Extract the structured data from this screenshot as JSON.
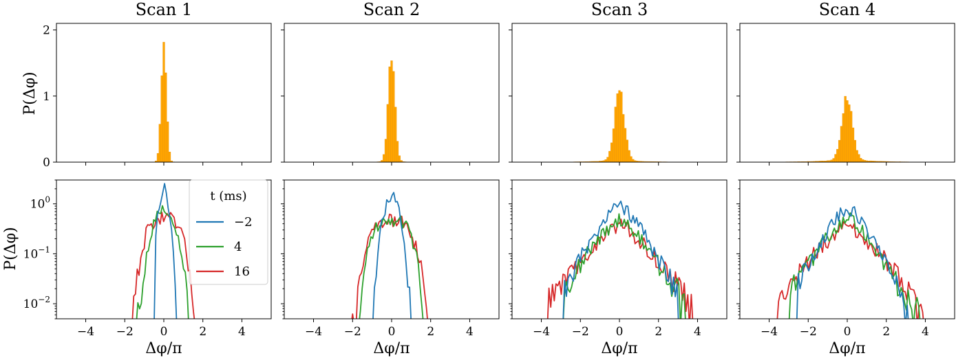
{
  "column_titles": [
    "Scan 1",
    "Scan 2",
    "Scan 3",
    "Scan 4"
  ],
  "labels": {
    "y_top": "P(Δφ)",
    "y_bottom": "P(Δφ)",
    "x": "Δφ/π"
  },
  "legend": {
    "title": "t (ms)",
    "entries": [
      "−2",
      "4",
      "16"
    ]
  },
  "colors": {
    "hist": "#ffa500",
    "hist_edge": "#e8920a",
    "series": [
      "#1f77b4",
      "#2ca02c",
      "#d62728"
    ]
  },
  "chart_data": [
    {
      "type": "histogram-grid",
      "row": "top",
      "xlim": [
        -5.5,
        5.5
      ],
      "ylim": [
        0,
        2.1
      ],
      "xticks": [
        -4,
        -2,
        0,
        2,
        4
      ],
      "yticks": [
        0,
        1,
        2
      ],
      "ytick_labels": [
        "0",
        "1",
        "2"
      ],
      "scale": "linear",
      "panels": [
        {
          "scan": "Scan 1",
          "peak": 1.97,
          "core_width": 0.13,
          "tail_amp": 0.012,
          "tail_width": 0.35,
          "xmin": -0.6,
          "xmax": 0.6
        },
        {
          "scan": "Scan 2",
          "peak": 1.56,
          "core_width": 0.17,
          "tail_amp": 0.015,
          "tail_width": 0.6,
          "xmin": -1.1,
          "xmax": 2.3
        },
        {
          "scan": "Scan 3",
          "peak": 1.04,
          "core_width": 0.25,
          "tail_amp": 0.035,
          "tail_width": 1.1,
          "xmin": -3.2,
          "xmax": 3.5
        },
        {
          "scan": "Scan 4",
          "peak": 0.92,
          "core_width": 0.27,
          "tail_amp": 0.045,
          "tail_width": 1.3,
          "xmin": -3.6,
          "xmax": 3.6
        }
      ]
    },
    {
      "type": "line",
      "row": "bottom",
      "scale": "log",
      "xlim": [
        -5.5,
        5.5
      ],
      "ylim": [
        0.005,
        3.0
      ],
      "xticks": [
        -4,
        -2,
        0,
        2,
        4
      ],
      "xtick_labels": [
        "−4",
        "−2",
        "0",
        "2",
        "4"
      ],
      "yticks": [
        0.01,
        0.1,
        1
      ],
      "series_names": [
        "−2",
        "4",
        "16"
      ],
      "panels": [
        {
          "scan": "Scan 1",
          "series": [
            {
              "name": "−2",
              "peak": 1.95,
              "width": 0.2,
              "shape": "gauss",
              "xmin": -0.5,
              "xmax": 0.7
            },
            {
              "name": "4",
              "peak": 0.78,
              "width": 0.42,
              "shape": "gauss",
              "xmin": -1.6,
              "xmax": 2.2
            },
            {
              "name": "16",
              "peak": 0.5,
              "width": 0.8,
              "shape": "flat",
              "xmin": -2.8,
              "xmax": 2.5
            }
          ]
        },
        {
          "scan": "Scan 2",
          "series": [
            {
              "name": "−2",
              "peak": 1.55,
              "width": 0.3,
              "shape": "gauss",
              "xmin": -1.6,
              "xmax": 2.0
            },
            {
              "name": "4",
              "peak": 0.5,
              "width": 0.85,
              "shape": "flat",
              "xmin": -2.5,
              "xmax": 2.5
            },
            {
              "name": "16",
              "peak": 0.45,
              "width": 0.95,
              "shape": "flat",
              "xmin": -2.9,
              "xmax": 3.1
            }
          ]
        },
        {
          "scan": "Scan 3",
          "series": [
            {
              "name": "−2",
              "peak": 1.0,
              "width": 0.95,
              "shape": "lap",
              "xmin": -2.9,
              "xmax": 3.1
            },
            {
              "name": "4",
              "peak": 0.5,
              "width": 1.1,
              "shape": "lap",
              "xmin": -2.9,
              "xmax": 3.7
            },
            {
              "name": "16",
              "peak": 0.38,
              "width": 1.3,
              "shape": "lap",
              "xmin": -3.7,
              "xmax": 4.0
            }
          ]
        },
        {
          "scan": "Scan 4",
          "series": [
            {
              "name": "−2",
              "peak": 0.88,
              "width": 0.9,
              "shape": "lap",
              "xmin": -2.6,
              "xmax": 3.2
            },
            {
              "name": "4",
              "peak": 0.55,
              "width": 1.05,
              "shape": "lap",
              "xmin": -3.0,
              "xmax": 3.9
            },
            {
              "name": "16",
              "peak": 0.38,
              "width": 1.3,
              "shape": "lap",
              "xmin": -3.7,
              "xmax": 4.0
            }
          ]
        }
      ]
    }
  ]
}
